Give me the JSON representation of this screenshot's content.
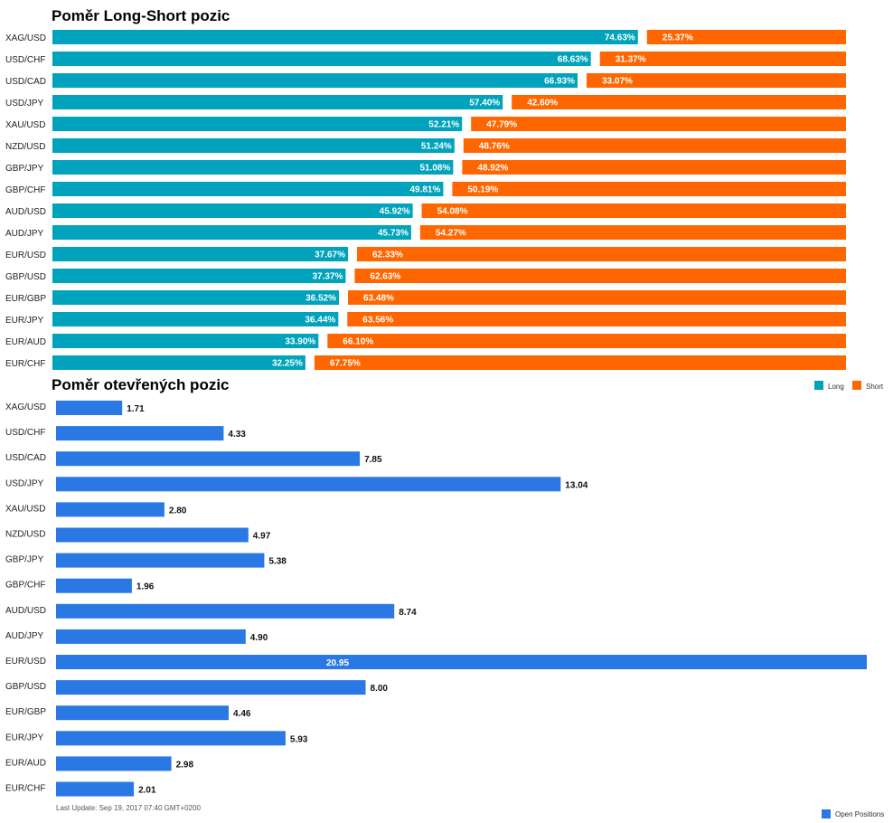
{
  "chart_data": [
    {
      "type": "bar",
      "orientation": "horizontal",
      "stacked": true,
      "title": "Poměr Long-Short pozic",
      "categories": [
        "XAG/USD",
        "USD/CHF",
        "USD/CAD",
        "USD/JPY",
        "XAU/USD",
        "NZD/USD",
        "GBP/JPY",
        "GBP/CHF",
        "AUD/USD",
        "AUD/JPY",
        "EUR/USD",
        "GBP/USD",
        "EUR/GBP",
        "EUR/JPY",
        "EUR/AUD",
        "EUR/CHF"
      ],
      "series": [
        {
          "name": "Long",
          "color": "#00a3bb",
          "values": [
            74.63,
            68.63,
            66.93,
            57.4,
            52.21,
            51.24,
            51.08,
            49.81,
            45.92,
            45.73,
            37.67,
            37.37,
            36.52,
            36.44,
            33.9,
            32.25
          ],
          "labels": [
            "74.63%",
            "68.63%",
            "66.93%",
            "57.40%",
            "52.21%",
            "51.24%",
            "51.08%",
            "49.81%",
            "45.92%",
            "45.73%",
            "37.67%",
            "37.37%",
            "36.52%",
            "36.44%",
            "33.90%",
            "32.25%"
          ]
        },
        {
          "name": "Short",
          "color": "#ff6600",
          "values": [
            25.37,
            31.37,
            33.07,
            42.6,
            47.79,
            48.76,
            48.92,
            50.19,
            54.08,
            54.27,
            62.33,
            62.63,
            63.48,
            63.56,
            66.1,
            67.75
          ],
          "labels": [
            "25.37%",
            "31.37%",
            "33.07%",
            "42.60%",
            "47.79%",
            "48.76%",
            "48.92%",
            "50.19%",
            "54.08%",
            "54.27%",
            "62.33%",
            "62.63%",
            "63.48%",
            "63.56%",
            "66.10%",
            "67.75%"
          ]
        }
      ],
      "xlim": [
        0,
        100
      ],
      "legend": "below-right"
    },
    {
      "type": "bar",
      "orientation": "horizontal",
      "title": "Poměr otevřených pozic",
      "categories": [
        "XAG/USD",
        "USD/CHF",
        "USD/CAD",
        "USD/JPY",
        "XAU/USD",
        "NZD/USD",
        "GBP/JPY",
        "GBP/CHF",
        "AUD/USD",
        "AUD/JPY",
        "EUR/USD",
        "GBP/USD",
        "EUR/GBP",
        "EUR/JPY",
        "EUR/AUD",
        "EUR/CHF"
      ],
      "series": [
        {
          "name": "Open Positions",
          "color": "#2a78e4",
          "values": [
            1.71,
            4.33,
            7.85,
            13.04,
            2.8,
            4.97,
            5.38,
            1.96,
            8.74,
            4.9,
            20.95,
            8.0,
            4.46,
            5.93,
            2.98,
            2.01
          ],
          "labels": [
            "1.71",
            "4.33",
            "7.85",
            "13.04",
            "2.80",
            "4.97",
            "5.38",
            "1.96",
            "8.74",
            "4.90",
            "20.95",
            "8.00",
            "4.46",
            "5.93",
            "2.98",
            "2.01"
          ]
        }
      ],
      "xlim": [
        0,
        20.95
      ],
      "legend": "bottom-right"
    }
  ],
  "footer": {
    "last_update": "Last Update: Sep 19, 2017 07:40 GMT+0200"
  }
}
